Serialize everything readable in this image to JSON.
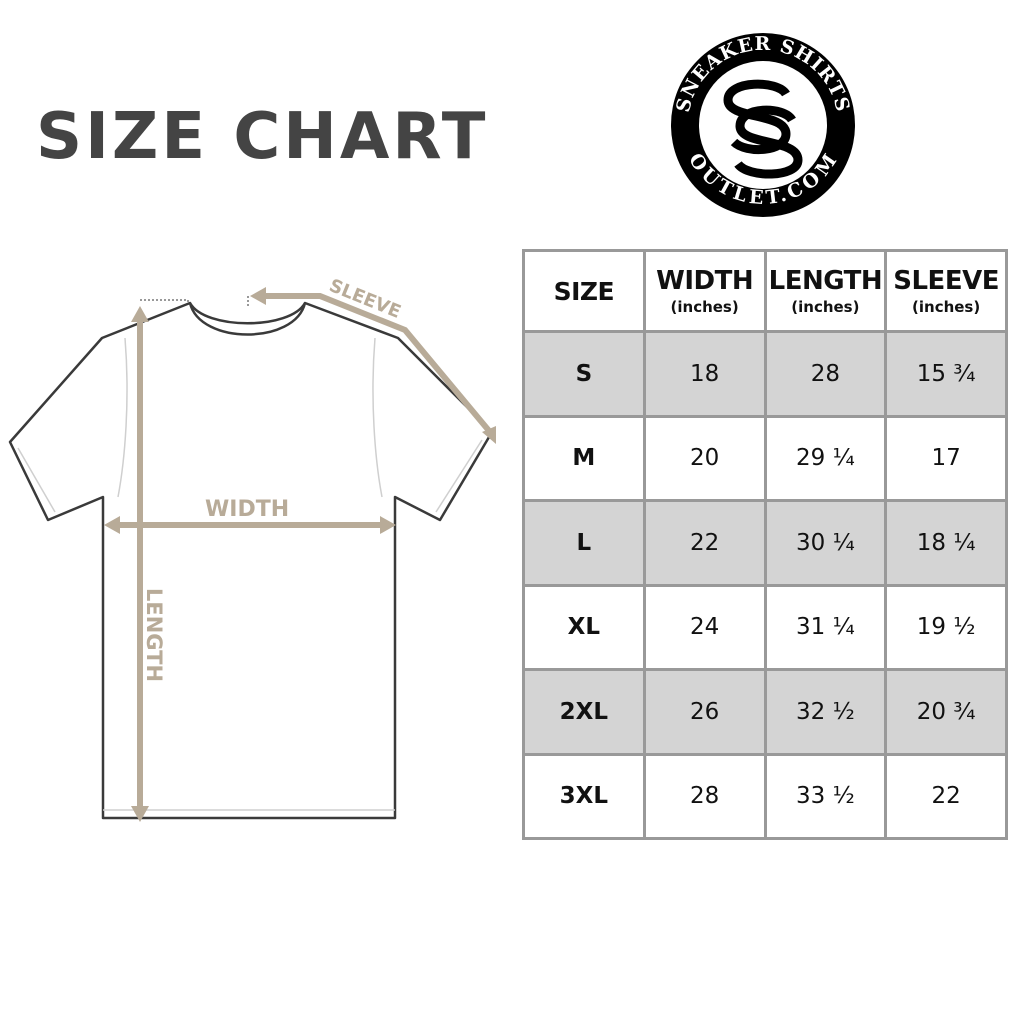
{
  "title": "SIZE CHART",
  "logo": {
    "top_text": "SNEAKER SHIRTS",
    "bottom_text": "OUTLET.COM",
    "monogram": "SS"
  },
  "diagram": {
    "sleeve_label": "SLEEVE",
    "width_label": "WIDTH",
    "length_label": "LENGTH",
    "accent_color": "#b8ab98"
  },
  "table": {
    "headers": [
      {
        "label": "SIZE",
        "unit": ""
      },
      {
        "label": "WIDTH",
        "unit": "(inches)"
      },
      {
        "label": "LENGTH",
        "unit": "(inches)"
      },
      {
        "label": "SLEEVE",
        "unit": "(inches)"
      }
    ],
    "rows": [
      [
        "S",
        "18",
        "28",
        "15 ¾"
      ],
      [
        "M",
        "20",
        "29 ¼",
        "17"
      ],
      [
        "L",
        "22",
        "30 ¼",
        "18 ¼"
      ],
      [
        "XL",
        "24",
        "31 ¼",
        "19 ½"
      ],
      [
        "2XL",
        "26",
        "32 ½",
        "20 ¾"
      ],
      [
        "3XL",
        "28",
        "33 ½",
        "22"
      ]
    ],
    "shade_color": "#d4d4d4",
    "border_color": "#999999"
  }
}
